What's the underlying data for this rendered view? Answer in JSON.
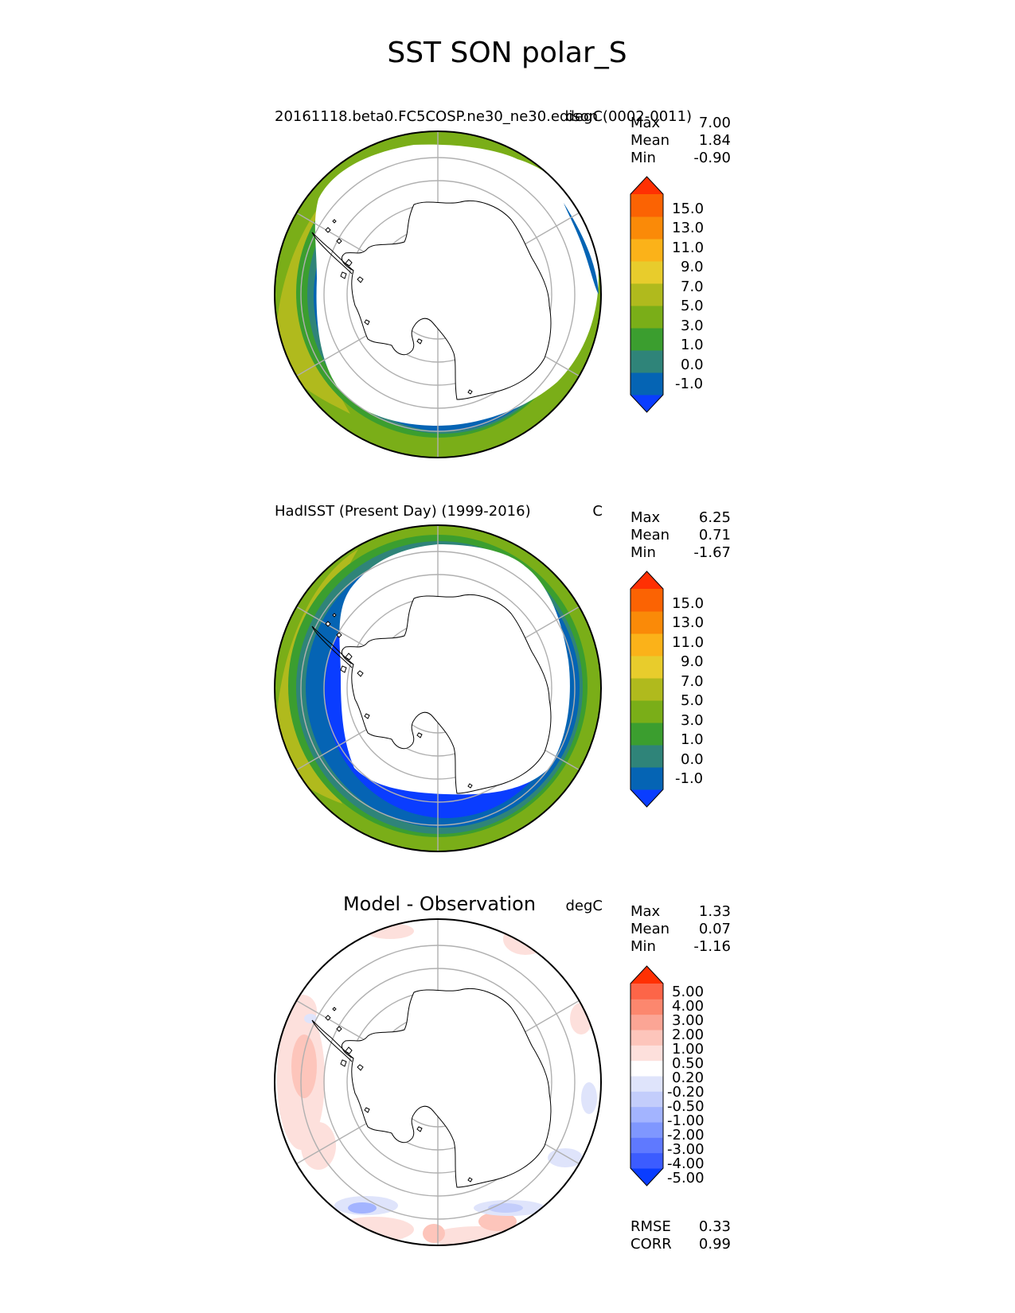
{
  "figure": {
    "title": "SST SON polar_S"
  },
  "colors": {
    "sst_levels": [
      "#0a3dff",
      "#0564b4",
      "#2f8479",
      "#3b9e2f",
      "#7aae18",
      "#b0ba1d",
      "#e8cc2c",
      "#fbb219",
      "#fa8a08",
      "#fb6303",
      "#ff3003"
    ],
    "diff_levels": [
      "#0a3dff",
      "#3c5cff",
      "#5f79ff",
      "#7f97ff",
      "#a3b4ff",
      "#c3cdfb",
      "#dfe4fb",
      "#ffffff",
      "#fde0dc",
      "#fdc5bb",
      "#fba595",
      "#fc876e",
      "#fd6548",
      "#ff3003"
    ],
    "land": "#ffffff",
    "coast": "#000000",
    "grid": "#b0b0b0"
  },
  "panels": [
    {
      "title": "20161118.beta0.FC5COSP.ne30_ne30.edison (0002-0011)",
      "units": "degC",
      "stats": [
        {
          "label": "Max",
          "value": "7.00"
        },
        {
          "label": "Mean",
          "value": "1.84"
        },
        {
          "label": "Min",
          "value": "-0.90"
        }
      ],
      "colorbar_ticks": [
        "15.0",
        "13.0",
        "11.0",
        "9.0",
        "7.0",
        "5.0",
        "3.0",
        "1.0",
        "0.0",
        "-1.0"
      ]
    },
    {
      "title": "HadISST (Present Day) (1999-2016)",
      "units": "C",
      "stats": [
        {
          "label": "Max",
          "value": "6.25"
        },
        {
          "label": "Mean",
          "value": "0.71"
        },
        {
          "label": "Min",
          "value": "-1.67"
        }
      ],
      "colorbar_ticks": [
        "15.0",
        "13.0",
        "11.0",
        "9.0",
        "7.0",
        "5.0",
        "3.0",
        "1.0",
        "0.0",
        "-1.0"
      ]
    },
    {
      "title": "Model - Observation",
      "units": "degC",
      "stats": [
        {
          "label": "Max",
          "value": "1.33"
        },
        {
          "label": "Mean",
          "value": "0.07"
        },
        {
          "label": "Min",
          "value": "-1.16"
        }
      ],
      "colorbar_ticks": [
        "5.00",
        "4.00",
        "3.00",
        "2.00",
        "1.00",
        "0.50",
        "0.20",
        "-0.20",
        "-0.50",
        "-1.00",
        "-2.00",
        "-3.00",
        "-4.00",
        "-5.00"
      ],
      "metrics": [
        {
          "label": "RMSE",
          "value": "0.33"
        },
        {
          "label": "CORR",
          "value": "0.99"
        }
      ]
    }
  ],
  "chart_data": [
    {
      "type": "heatmap",
      "projection": "south polar stereographic",
      "title": "20161118.beta0.FC5COSP.ne30_ne30.edison (0002-0011)",
      "units": "degC",
      "levels": [
        -1.0,
        0.0,
        1.0,
        3.0,
        5.0,
        7.0,
        9.0,
        11.0,
        13.0,
        15.0
      ],
      "max": 7.0,
      "mean": 1.84,
      "min": -0.9
    },
    {
      "type": "heatmap",
      "projection": "south polar stereographic",
      "title": "HadISST (Present Day) (1999-2016)",
      "units": "C",
      "levels": [
        -1.0,
        0.0,
        1.0,
        3.0,
        5.0,
        7.0,
        9.0,
        11.0,
        13.0,
        15.0
      ],
      "max": 6.25,
      "mean": 0.71,
      "min": -1.67
    },
    {
      "type": "heatmap",
      "projection": "south polar stereographic",
      "title": "Model - Observation",
      "units": "degC",
      "levels": [
        -5.0,
        -4.0,
        -3.0,
        -2.0,
        -1.0,
        -0.5,
        -0.2,
        0.2,
        0.5,
        1.0,
        2.0,
        3.0,
        4.0,
        5.0
      ],
      "max": 1.33,
      "mean": 0.07,
      "min": -1.16,
      "rmse": 0.33,
      "corr": 0.99
    }
  ]
}
